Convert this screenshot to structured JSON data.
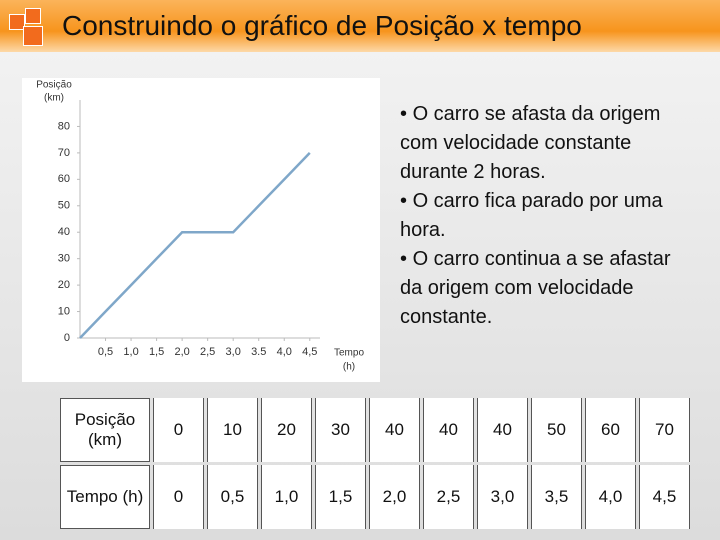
{
  "title": "Construindo o gráfico de Posição x tempo",
  "chart_data": {
    "type": "line",
    "y_label": [
      "Posição",
      "(km)"
    ],
    "x_label": [
      "Tempo",
      "(h)"
    ],
    "x": [
      0,
      0.5,
      1,
      1.5,
      2,
      2.5,
      3,
      3.5,
      4,
      4.5
    ],
    "values": [
      0,
      10,
      20,
      30,
      40,
      40,
      40,
      50,
      60,
      70
    ],
    "color": "#7fa7c9",
    "xlim": [
      0,
      4.7
    ],
    "ylim": [
      0,
      90
    ],
    "xticks": [
      {
        "value": 0.5,
        "label": "0,5"
      },
      {
        "value": 1,
        "label": "1,0"
      },
      {
        "value": 1.5,
        "label": "1,5"
      },
      {
        "value": 2,
        "label": "2,0"
      },
      {
        "value": 2.5,
        "label": "2,5"
      },
      {
        "value": 3,
        "label": "3,0"
      },
      {
        "value": 3.5,
        "label": "3.5"
      },
      {
        "value": 4,
        "label": "4,0"
      },
      {
        "value": 4.5,
        "label": "4,5"
      }
    ],
    "yticks": [
      0,
      10,
      20,
      30,
      40,
      50,
      60,
      70,
      80
    ],
    "grid": false
  },
  "bullets": [
    "O carro se afasta da origem com velocidade constante durante 2 horas.",
    "O carro fica parado por uma hora.",
    "O carro continua a se afastar da origem com velocidade constante."
  ],
  "table": {
    "rows": [
      [
        "Posição (km)",
        "0",
        "10",
        "20",
        "30",
        "40",
        "40",
        "40",
        "50",
        "60",
        "70"
      ],
      [
        "Tempo (h)",
        "0",
        "0,5",
        "1,0",
        "1,5",
        "2,0",
        "2,5",
        "3,0",
        "3,5",
        "4,0",
        "4,5"
      ]
    ]
  }
}
